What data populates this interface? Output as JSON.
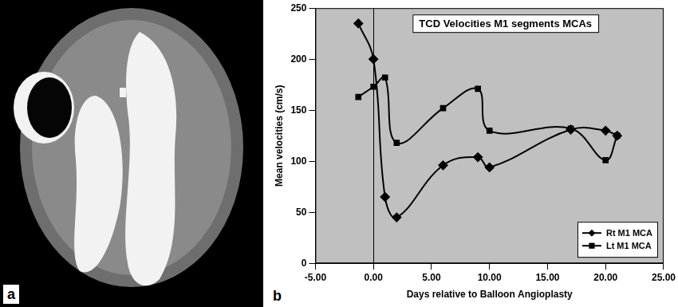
{
  "panel_labels": [
    "a",
    "b"
  ],
  "chart_data": {
    "type": "line",
    "title": "TCD Velocities M1 segments MCAs",
    "x_label": "Days relative to Balloon Angioplasty",
    "y_label": "Mean velocities (cm/s)",
    "x": [
      -1.3,
      0,
      1,
      2,
      6,
      9,
      10,
      17,
      20,
      21
    ],
    "series": [
      {
        "name": "Rt M1 MCA",
        "color": "#000000",
        "marker": "diamond",
        "line_style": "smooth",
        "values": [
          235,
          200,
          65,
          45,
          96,
          104,
          94,
          131,
          130,
          125
        ]
      },
      {
        "name": "Lt M1 MCA",
        "color": "#000000",
        "marker": "square",
        "line_style": "smooth",
        "values": [
          163,
          173,
          182,
          118,
          152,
          171,
          130,
          132,
          101,
          125
        ]
      }
    ],
    "xlim": [
      -5,
      25
    ],
    "xticks": [
      {
        "value": -5,
        "label": "-5.00"
      },
      {
        "value": 0,
        "label": "0.00"
      },
      {
        "value": 5,
        "label": "5.00"
      },
      {
        "value": 10,
        "label": "10.00"
      },
      {
        "value": 15,
        "label": "15.00"
      },
      {
        "value": 20,
        "label": "20.00"
      },
      {
        "value": 25,
        "label": "25.00"
      }
    ],
    "ylim": [
      0,
      250
    ],
    "yticks": [
      0,
      50,
      100,
      150,
      200,
      250
    ],
    "grid": false,
    "legend": "bottom right"
  }
}
